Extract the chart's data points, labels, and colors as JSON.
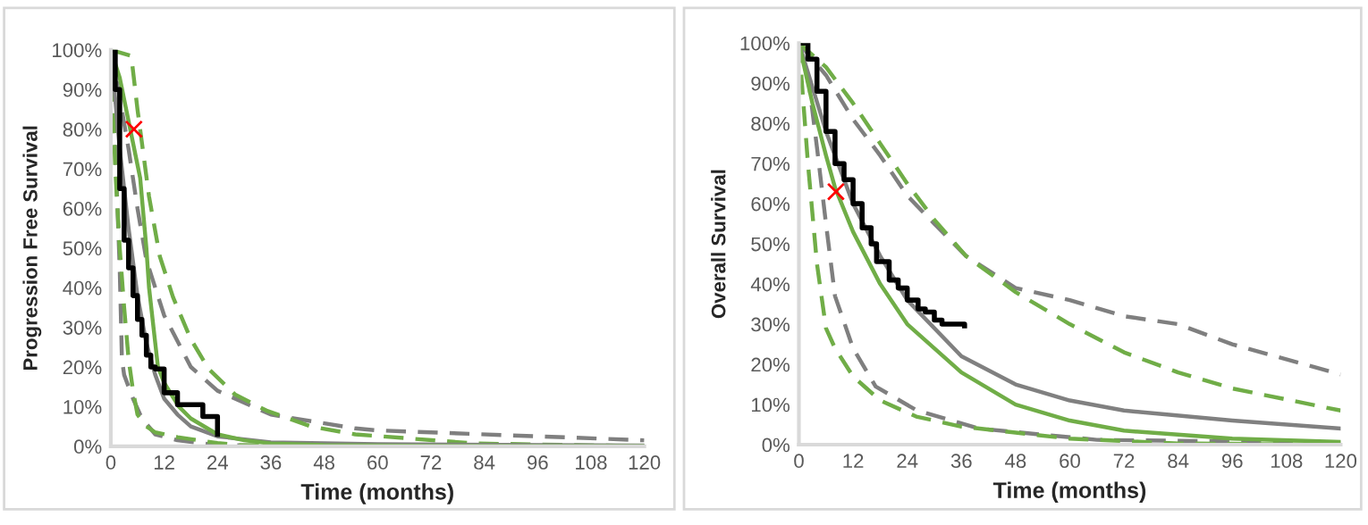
{
  "chart_data": [
    {
      "type": "line",
      "xlabel": "Time (months)",
      "ylabel": "Progression Free Survival",
      "xlim": [
        0,
        120
      ],
      "ylim": [
        0,
        100
      ],
      "xticks": [
        0,
        12,
        24,
        36,
        48,
        60,
        72,
        84,
        96,
        108,
        120
      ],
      "yticks": [
        {
          "value": 0,
          "label": "0%"
        },
        {
          "value": 10,
          "label": "10%"
        },
        {
          "value": 20,
          "label": "20%"
        },
        {
          "value": 30,
          "label": "30%"
        },
        {
          "value": 40,
          "label": "40%"
        },
        {
          "value": 50,
          "label": "50%"
        },
        {
          "value": 60,
          "label": "60%"
        },
        {
          "value": 70,
          "label": "70%"
        },
        {
          "value": 80,
          "label": "80%"
        },
        {
          "value": 90,
          "label": "90%"
        },
        {
          "value": 100,
          "label": "100%"
        }
      ],
      "grid": false,
      "legend": false,
      "series": [
        {
          "type": "line",
          "color": "#7f7f7f",
          "line_style": "dashed",
          "x": [
            0,
            2,
            4,
            6,
            8,
            12,
            18,
            24,
            31,
            36,
            55,
            60,
            120
          ],
          "values": [
            100,
            88,
            75,
            60,
            47,
            33,
            20,
            14,
            10.5,
            8,
            4.5,
            4,
            1.5
          ]
        },
        {
          "type": "line",
          "color": "#7f7f7f",
          "line_style": "dashed",
          "x": [
            0,
            1,
            2,
            2.5,
            3,
            5,
            7,
            10,
            15,
            24,
            48,
            120
          ],
          "values": [
            100,
            75,
            45,
            22,
            18,
            12,
            7,
            3,
            1.5,
            0.3,
            0,
            0
          ]
        },
        {
          "type": "line",
          "color": "#70ad47",
          "line_style": "dashed",
          "x": [
            0,
            4.6,
            6,
            8.6,
            11,
            14,
            18,
            22,
            28,
            35,
            45,
            55,
            82,
            120
          ],
          "values": [
            100,
            98.5,
            85,
            63,
            48,
            37.6,
            27,
            19.5,
            13,
            9,
            5,
            3,
            0.7,
            0
          ]
        },
        {
          "type": "line",
          "color": "#70ad47",
          "line_style": "dashed",
          "x": [
            0,
            1,
            2,
            3,
            4,
            5,
            6,
            8,
            10,
            15,
            24,
            29,
            36,
            120
          ],
          "values": [
            100,
            70,
            50,
            35,
            22,
            14,
            8,
            5,
            3.5,
            2.3,
            0.8,
            0.3,
            0.2,
            0
          ]
        },
        {
          "type": "line",
          "color": "#808080",
          "line_style": "solid",
          "x": [
            0,
            2,
            4,
            6,
            8,
            10,
            12,
            15,
            18,
            24,
            36,
            60,
            120
          ],
          "values": [
            100,
            75,
            55,
            38,
            26,
            18,
            12,
            8,
            5,
            2.5,
            1,
            0.5,
            0.2
          ]
        },
        {
          "type": "line",
          "color": "#70ad47",
          "line_style": "solid",
          "x": [
            0,
            2,
            4,
            6.6,
            8,
            8.6,
            10,
            10.6,
            12,
            15.3,
            18,
            24,
            30,
            36,
            48,
            72,
            120
          ],
          "values": [
            100,
            93,
            82,
            67.7,
            50,
            40,
            26,
            20,
            16,
            10,
            7,
            3,
            1.5,
            0.7,
            0.3,
            0.1,
            0
          ]
        },
        {
          "type": "step",
          "color": "#000000",
          "line_style": "solid",
          "x": [
            0,
            1,
            2,
            3,
            4,
            5,
            6,
            7,
            8,
            9,
            10,
            12,
            15,
            19,
            20.7,
            24
          ],
          "values": [
            100,
            90,
            65,
            52,
            45,
            38,
            32,
            28,
            23,
            20,
            19.5,
            13.5,
            10.5,
            10.5,
            7.5,
            3
          ]
        },
        {
          "type": "scatter",
          "color": "#ff0000",
          "marker": "cross",
          "x": [
            5.2
          ],
          "values": [
            80
          ]
        }
      ]
    },
    {
      "type": "line",
      "xlabel": "Time (months)",
      "ylabel": "Overall Survival",
      "xlim": [
        0,
        120
      ],
      "ylim": [
        0,
        100
      ],
      "xticks": [
        0,
        12,
        24,
        36,
        48,
        60,
        72,
        84,
        96,
        108,
        120
      ],
      "yticks": [
        {
          "value": 0,
          "label": "0%"
        },
        {
          "value": 10,
          "label": "10%"
        },
        {
          "value": 20,
          "label": "20%"
        },
        {
          "value": 30,
          "label": "30%"
        },
        {
          "value": 40,
          "label": "40%"
        },
        {
          "value": 50,
          "label": "50%"
        },
        {
          "value": 60,
          "label": "60%"
        },
        {
          "value": 70,
          "label": "70%"
        },
        {
          "value": 80,
          "label": "80%"
        },
        {
          "value": 90,
          "label": "90%"
        },
        {
          "value": 100,
          "label": "100%"
        }
      ],
      "grid": false,
      "legend": false,
      "series": [
        {
          "type": "line",
          "color": "#7f7f7f",
          "line_style": "dashed",
          "x": [
            0,
            6,
            12,
            18,
            24,
            30,
            37,
            48,
            60,
            72,
            84,
            96,
            120
          ],
          "values": [
            100,
            92,
            81,
            72,
            62,
            55,
            47,
            39,
            36,
            32,
            30,
            25,
            17.5
          ]
        },
        {
          "type": "line",
          "color": "#7f7f7f",
          "line_style": "dashed",
          "x": [
            0,
            2,
            4,
            6,
            8,
            12,
            17,
            26,
            40,
            66,
            120
          ],
          "values": [
            100,
            92,
            74,
            55,
            37,
            24,
            14.5,
            8.6,
            4,
            1.2,
            0.5
          ]
        },
        {
          "type": "line",
          "color": "#70ad47",
          "line_style": "dashed",
          "x": [
            0,
            6,
            12,
            18,
            24,
            30,
            37,
            48,
            60,
            72,
            84,
            96,
            120
          ],
          "values": [
            100,
            94,
            85,
            75,
            65,
            56,
            47,
            38,
            30,
            23,
            18,
            14,
            8.5
          ]
        },
        {
          "type": "line",
          "color": "#70ad47",
          "line_style": "dashed",
          "x": [
            0,
            2,
            4,
            6,
            8,
            12,
            18,
            26,
            36,
            48,
            60,
            84,
            120
          ],
          "values": [
            100,
            70,
            45,
            29,
            24,
            17,
            11,
            7,
            4.5,
            3,
            1.5,
            0.3,
            0
          ]
        },
        {
          "type": "line",
          "color": "#808080",
          "line_style": "solid",
          "x": [
            0,
            6,
            12,
            18,
            24,
            36,
            48,
            60,
            72,
            96,
            120
          ],
          "values": [
            100,
            78,
            60,
            47,
            36,
            22,
            15,
            11,
            8.5,
            6,
            4
          ]
        },
        {
          "type": "line",
          "color": "#70ad47",
          "line_style": "solid",
          "x": [
            0,
            3,
            6,
            8,
            12,
            18,
            24,
            36,
            48,
            60,
            72,
            96,
            120
          ],
          "values": [
            100,
            85,
            72,
            64,
            53,
            40,
            30,
            18,
            10,
            6,
            3.5,
            1.5,
            0.7
          ]
        },
        {
          "type": "step",
          "color": "#000000",
          "line_style": "solid",
          "x": [
            0,
            2,
            4,
            6,
            8,
            10,
            12,
            14,
            16,
            17.2,
            20,
            22,
            24,
            26.4,
            28,
            30,
            31.7,
            36.7
          ],
          "values": [
            100,
            96,
            88,
            78,
            70,
            66,
            60,
            54,
            50,
            45.6,
            41,
            39,
            36,
            33.8,
            33,
            31,
            30,
            29.6
          ]
        },
        {
          "type": "scatter",
          "color": "#ff0000",
          "marker": "cross",
          "x": [
            8.2
          ],
          "values": [
            63
          ]
        }
      ]
    }
  ]
}
